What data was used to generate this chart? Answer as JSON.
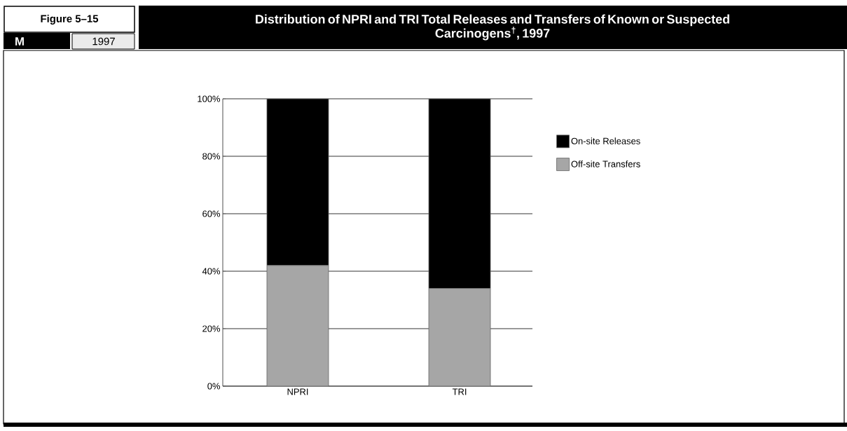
{
  "chart_data": {
    "type": "bar",
    "title": "Distribution of NPRI and TRI Total Releases and Transfers of Known or Suspected Carcinogens$^{†}$, 1997",
    "annotations": [
      "Figure 5–15",
      "M",
      "1997"
    ],
    "categories": [
      "NPRI",
      "TRI"
    ],
    "stacked": true,
    "series": [
      {
        "name": "Off-site Transfers",
        "color": "#a6a6a6",
        "values": [
          42,
          34
        ]
      },
      {
        "name": "On-site Releases",
        "color": "#000000",
        "values": [
          58,
          66
        ]
      }
    ],
    "ylim": [
      0,
      100
    ],
    "yticks": [
      {
        "value": 0,
        "label": "0%"
      },
      {
        "value": 20,
        "label": "20%"
      },
      {
        "value": 40,
        "label": "40%"
      },
      {
        "value": 60,
        "label": "60%"
      },
      {
        "value": 80,
        "label": "80%"
      },
      {
        "value": 100,
        "label": "100%"
      }
    ],
    "grid": "y",
    "legend": "right"
  }
}
